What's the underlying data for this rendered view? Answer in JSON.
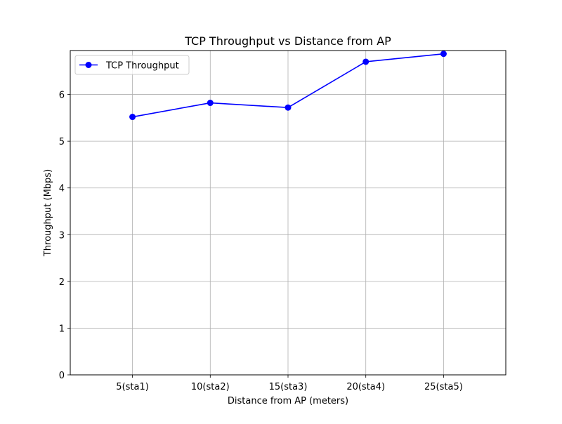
{
  "chart_data": {
    "type": "line",
    "title": "TCP Throughput vs Distance from AP",
    "xlabel": "Distance from AP (meters)",
    "ylabel": "Throughput (Mbps)",
    "categories": [
      "5(sta1)",
      "10(sta2)",
      "15(sta3)",
      "20(sta4)",
      "25(sta5)"
    ],
    "series": [
      {
        "name": "TCP Throughput",
        "values": [
          5.52,
          5.82,
          5.72,
          6.7,
          6.87
        ],
        "color": "#0000ff",
        "marker": "circle"
      }
    ],
    "xlim": [
      1,
      29
    ],
    "ylim": [
      0,
      6.94
    ],
    "yticks": [
      0,
      1,
      2,
      3,
      4,
      5,
      6
    ],
    "grid": true,
    "legend_position": "top-left"
  }
}
